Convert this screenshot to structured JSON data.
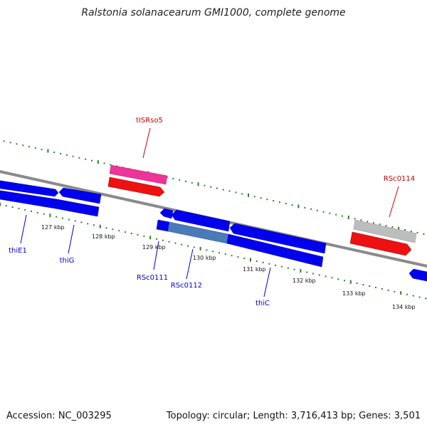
{
  "title": "Ralstonia solanacearum GMI1000, complete genome",
  "footer": {
    "accession": "Accession: NC_003295",
    "summary": "Topology: circular; Length: 3,716,413 bp; Genes: 3,501"
  },
  "colors": {
    "backbone": "#8a8a8a",
    "tick": "#2e7d2e",
    "cds": "#0000ee",
    "highlight_cds": "#4a7ab8",
    "gene": "#ee1111",
    "trna": "#ee3399",
    "pseudo": "#bdbdbd",
    "label_blue": "#0000cc",
    "label_red": "#cc0000"
  },
  "scale_labels": [
    "127 kbp",
    "128 kbp",
    "129 kbp",
    "130 kbp",
    "131 kbp",
    "132 kbp",
    "133 kbp",
    "134 kbp"
  ],
  "feature_labels": [
    {
      "text": "thiE1",
      "color": "label_blue"
    },
    {
      "text": "thiG",
      "color": "label_blue"
    },
    {
      "text": "RSc0111",
      "color": "label_blue"
    },
    {
      "text": "RSc0112",
      "color": "label_blue"
    },
    {
      "text": "thiC",
      "color": "label_blue"
    },
    {
      "text": "tISRso5",
      "color": "label_red"
    },
    {
      "text": "RSc0114",
      "color": "label_red"
    }
  ]
}
